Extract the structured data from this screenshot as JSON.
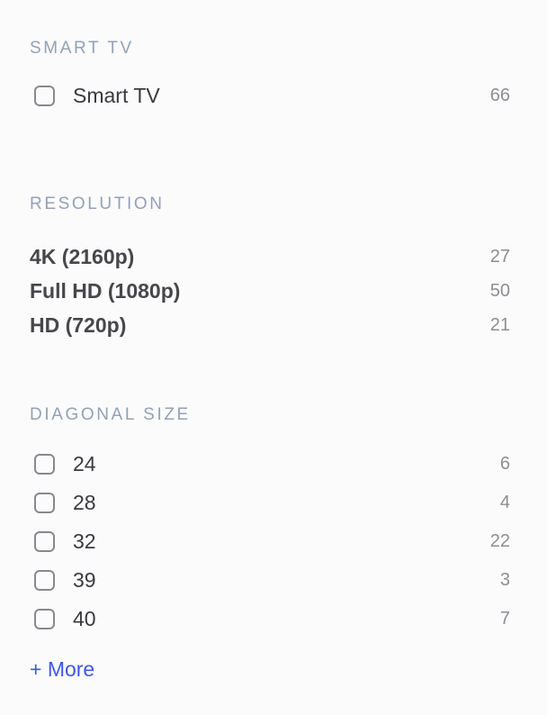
{
  "page": {
    "background": "#FBFBFC",
    "section_header_color": "#93A1B5",
    "label_color": "#3A3A3F",
    "bold_label_color": "#47474B",
    "count_color": "#8E8E93",
    "checkbox_border_color": "#88888E",
    "link_color": "#3D56E9"
  },
  "sections": [
    {
      "title": "SMART TV",
      "type": "checkbox-list",
      "items": [
        {
          "label": "Smart TV",
          "count": "66",
          "checked": false
        }
      ]
    },
    {
      "title": "RESOLUTION",
      "type": "link-list",
      "items": [
        {
          "label": "4K (2160p)",
          "count": "27"
        },
        {
          "label": "Full HD (1080p)",
          "count": "50"
        },
        {
          "label": "HD (720p)",
          "count": "21"
        }
      ]
    },
    {
      "title": "DIAGONAL SIZE",
      "type": "checkbox-list",
      "items": [
        {
          "label": "24",
          "count": "6",
          "checked": false
        },
        {
          "label": "28",
          "count": "4",
          "checked": false
        },
        {
          "label": "32",
          "count": "22",
          "checked": false
        },
        {
          "label": "39",
          "count": "3",
          "checked": false
        },
        {
          "label": "40",
          "count": "7",
          "checked": false
        }
      ],
      "more_label": "+ More"
    }
  ]
}
